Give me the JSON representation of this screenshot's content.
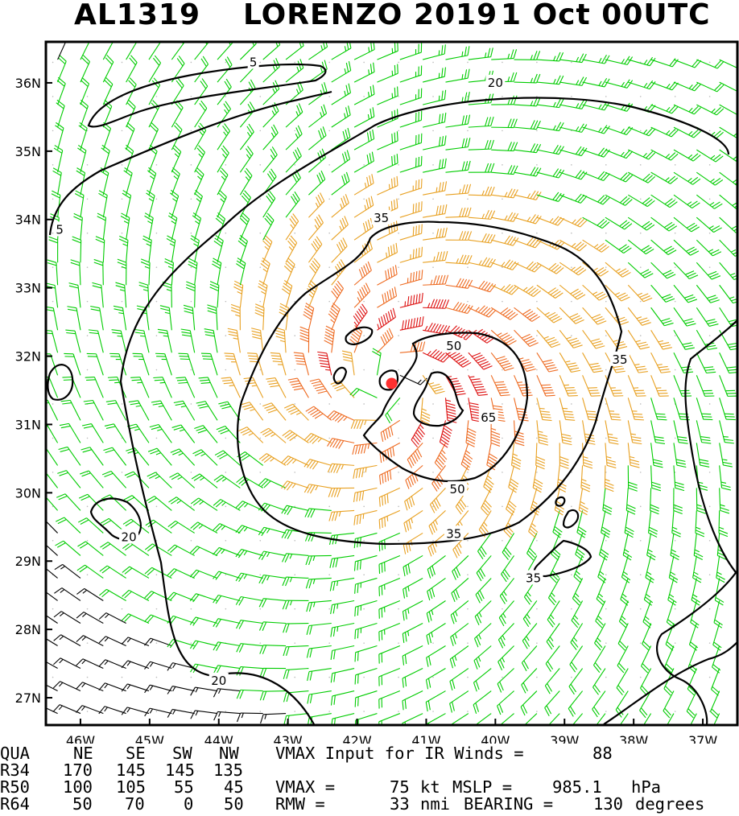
{
  "title": {
    "storm_id": "AL1319",
    "storm_name_year": "LORENZO 2019",
    "datetime": "1 Oct 00UTC"
  },
  "chart_data": {
    "type": "wind-barb-map",
    "title": "AL1319 LORENZO 2019 1 Oct 00UTC",
    "x_ticks": [
      "46W",
      "45W",
      "44W",
      "43W",
      "42W",
      "41W",
      "40W",
      "39W",
      "38W",
      "37W"
    ],
    "y_ticks": [
      "36N",
      "35N",
      "34N",
      "33N",
      "32N",
      "31N",
      "30N",
      "29N",
      "28N",
      "27N"
    ],
    "xlim_lon": [
      -46.5,
      -36.5
    ],
    "ylim_lat": [
      26.6,
      36.6
    ],
    "center": {
      "lon": -41.5,
      "lat": 31.6
    },
    "rmw_deg": 0.75,
    "contour_levels_kt": [
      5,
      20,
      35,
      50,
      65
    ],
    "contour_labels": [
      {
        "text": "5",
        "lon": -43.5,
        "lat": 36.3
      },
      {
        "text": "5",
        "lon": -46.3,
        "lat": 33.85
      },
      {
        "text": "20",
        "lon": -40.0,
        "lat": 36.0
      },
      {
        "text": "20",
        "lon": -45.3,
        "lat": 29.35
      },
      {
        "text": "20",
        "lon": -44.0,
        "lat": 27.25
      },
      {
        "text": "35",
        "lon": -41.65,
        "lat": 34.02
      },
      {
        "text": "35",
        "lon": -38.2,
        "lat": 31.95
      },
      {
        "text": "35",
        "lon": -40.6,
        "lat": 29.4
      },
      {
        "text": "35",
        "lon": -39.45,
        "lat": 28.75
      },
      {
        "text": "50",
        "lon": -40.6,
        "lat": 32.15
      },
      {
        "text": "50",
        "lon": -40.55,
        "lat": 30.05
      },
      {
        "text": "65",
        "lon": -40.1,
        "lat": 31.1
      }
    ],
    "barb_colors": {
      "lt20": "#000000",
      "20to35": "#00cc00",
      "35to50": "#e8a020",
      "50to65": "#ee6a20",
      "ge65": "#dd1010"
    },
    "center_marker_color": "#ff3030"
  },
  "summary": {
    "headers": [
      "QUA",
      "NE",
      "SE",
      "SW",
      "NW"
    ],
    "rows": [
      {
        "label": "R34",
        "values": [
          "170",
          "145",
          "145",
          "135"
        ]
      },
      {
        "label": "R50",
        "values": [
          "100",
          "105",
          "55",
          "45"
        ]
      },
      {
        "label": "R64",
        "values": [
          "50",
          "70",
          "0",
          "50"
        ]
      }
    ],
    "vmax_ir_text": "VMAX Input for IR Winds =",
    "vmax_ir_value": "88",
    "vmax_label": "VMAX =",
    "vmax_value": "75",
    "vmax_unit": "kt",
    "mslp_label": "MSLP =",
    "mslp_value": "985.1",
    "mslp_unit": "hPa",
    "rmw_label": "RMW =",
    "rmw_value": "33",
    "rmw_unit": "nmi",
    "bearing_label": "BEARING =",
    "bearing_value": "130",
    "bearing_unit": "degrees"
  }
}
